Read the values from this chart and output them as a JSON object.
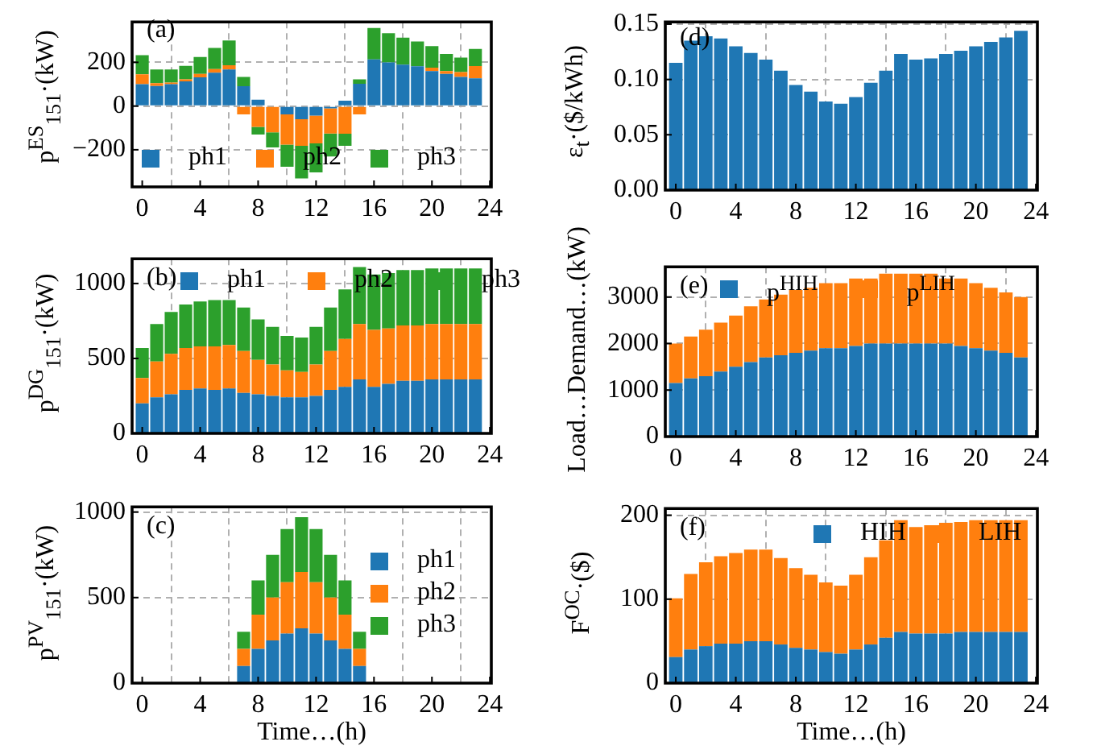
{
  "chart_data": [
    {
      "type": "bar",
      "stacked": true,
      "annotations": [
        "(a)"
      ],
      "ylabel": "p$^{ES}$$_{151}$·(kW)",
      "x": [
        0,
        1,
        2,
        3,
        4,
        5,
        6,
        7,
        8,
        9,
        10,
        11,
        12,
        13,
        14,
        15,
        16,
        17,
        18,
        19,
        20,
        21,
        22,
        23
      ],
      "xlim": [
        -0.7,
        24.1
      ],
      "xticks": [
        0,
        4,
        8,
        12,
        16,
        20,
        24
      ],
      "ylim": [
        -370,
        385
      ],
      "yticks": [
        {
          "value": -200,
          "label": "−200"
        },
        0,
        200
      ],
      "grid": true,
      "legend": "bottom",
      "series": [
        {
          "name": "ph1",
          "color": "#1f77b4",
          "values": [
            100,
            92,
            100,
            113,
            131,
            153,
            167,
            91,
            29,
            0,
            -38,
            -60,
            -44,
            -11,
            24,
            102,
            213,
            200,
            189,
            182,
            160,
            147,
            133,
            127
          ]
        },
        {
          "name": "ph2",
          "color": "#ff7f0e",
          "values": [
            45,
            13,
            7,
            9,
            16,
            16,
            20,
            -38,
            -95,
            -120,
            -138,
            -122,
            -127,
            -115,
            -127,
            -38,
            null,
            null,
            0,
            0,
            16,
            13,
            22,
            56
          ]
        },
        {
          "name": "ph3",
          "color": "#2ca02c",
          "values": [
            88,
            62,
            60,
            62,
            77,
            97,
            113,
            42,
            -35,
            -69,
            -102,
            -149,
            -133,
            -105,
            -55,
            20,
            144,
            133,
            124,
            113,
            98,
            78,
            67,
            78
          ]
        }
      ]
    },
    {
      "type": "bar",
      "stacked": true,
      "annotations": [
        "(b)"
      ],
      "ylabel": "p$^{DG}$$_{151}$·(kW)",
      "x": [
        0,
        1,
        2,
        3,
        4,
        5,
        6,
        7,
        8,
        9,
        10,
        11,
        12,
        13,
        14,
        15,
        16,
        17,
        18,
        19,
        20,
        21,
        22,
        23
      ],
      "xlim": [
        -0.7,
        24.1
      ],
      "xticks": [
        0,
        4,
        8,
        12,
        16,
        20,
        24
      ],
      "ylim": [
        0,
        1165
      ],
      "yticks": [
        0,
        500,
        1000
      ],
      "grid": true,
      "legend": "top",
      "series": [
        {
          "name": "ph1",
          "color": "#1f77b4",
          "values": [
            200,
            240,
            260,
            290,
            300,
            290,
            300,
            270,
            260,
            250,
            240,
            240,
            250,
            290,
            310,
            360,
            310,
            330,
            350,
            350,
            360,
            360,
            360,
            360
          ]
        },
        {
          "name": "ph2",
          "color": "#ff7f0e",
          "values": [
            170,
            240,
            270,
            280,
            280,
            290,
            290,
            280,
            230,
            210,
            180,
            170,
            210,
            260,
            320,
            370,
            380,
            370,
            370,
            370,
            370,
            370,
            370,
            370
          ]
        },
        {
          "name": "ph3",
          "color": "#2ca02c",
          "values": [
            200,
            250,
            280,
            290,
            300,
            310,
            300,
            290,
            270,
            250,
            230,
            230,
            250,
            290,
            330,
            380,
            370,
            370,
            370,
            370,
            370,
            370,
            370,
            370
          ]
        }
      ]
    },
    {
      "type": "bar",
      "stacked": true,
      "annotations": [
        "(c)"
      ],
      "ylabel": "p$^{PV}$$_{151}$·(kW)",
      "xlabel": "Time…(h)",
      "x": [
        0,
        1,
        2,
        3,
        4,
        5,
        6,
        7,
        8,
        9,
        10,
        11,
        12,
        13,
        14,
        15,
        16,
        17,
        18,
        19,
        20,
        21,
        22,
        23
      ],
      "xlim": [
        -0.7,
        24.1
      ],
      "xticks": [
        0,
        4,
        8,
        12,
        16,
        20,
        24
      ],
      "ylim": [
        0,
        1030
      ],
      "yticks": [
        0,
        500,
        1000
      ],
      "grid": true,
      "legend": "right",
      "series": [
        {
          "name": "ph1",
          "color": "#1f77b4",
          "values": [
            0,
            0,
            0,
            0,
            0,
            0,
            0,
            100,
            200,
            250,
            290,
            320,
            290,
            250,
            200,
            100,
            0,
            0,
            0,
            0,
            0,
            0,
            0,
            0
          ]
        },
        {
          "name": "ph2",
          "color": "#ff7f0e",
          "values": [
            0,
            0,
            0,
            0,
            0,
            0,
            0,
            100,
            200,
            250,
            300,
            330,
            300,
            250,
            200,
            100,
            0,
            0,
            0,
            0,
            0,
            0,
            0,
            0
          ]
        },
        {
          "name": "ph3",
          "color": "#2ca02c",
          "values": [
            0,
            0,
            0,
            0,
            0,
            0,
            0,
            100,
            200,
            250,
            310,
            320,
            310,
            250,
            200,
            100,
            0,
            0,
            0,
            0,
            0,
            0,
            0,
            0
          ]
        }
      ]
    },
    {
      "type": "bar",
      "annotations": [
        "(d)"
      ],
      "ylabel": "ε$_{t}$·($/kWh)",
      "x": [
        0,
        1,
        2,
        3,
        4,
        5,
        6,
        7,
        8,
        9,
        10,
        11,
        12,
        13,
        14,
        15,
        16,
        17,
        18,
        19,
        20,
        21,
        22,
        23
      ],
      "xlim": [
        -0.7,
        24.1
      ],
      "xticks": [
        0,
        4,
        8,
        12,
        16,
        20,
        24
      ],
      "ylim": [
        0,
        0.152
      ],
      "yticks": [
        {
          "value": 0,
          "label": "0.00"
        },
        {
          "value": 0.05,
          "label": "0.05"
        },
        {
          "value": 0.1,
          "label": "0.10"
        },
        {
          "value": 0.15,
          "label": "0.15"
        }
      ],
      "grid": true,
      "color": "#1f77b4",
      "values": [
        0.115,
        0.135,
        0.139,
        0.137,
        0.13,
        0.124,
        0.118,
        0.108,
        0.095,
        0.089,
        0.08,
        0.078,
        0.084,
        0.097,
        0.108,
        0.123,
        0.118,
        0.119,
        0.123,
        0.126,
        0.13,
        0.134,
        0.138,
        0.144
      ]
    },
    {
      "type": "bar",
      "stacked": true,
      "annotations": [
        "(e)"
      ],
      "ylabel": "Load…Demand…(kW)",
      "x": [
        0,
        1,
        2,
        3,
        4,
        5,
        6,
        7,
        8,
        9,
        10,
        11,
        12,
        13,
        14,
        15,
        16,
        17,
        18,
        19,
        20,
        21,
        22,
        23
      ],
      "xlim": [
        -0.7,
        24.1
      ],
      "xticks": [
        0,
        4,
        8,
        12,
        16,
        20,
        24
      ],
      "ylim": [
        0,
        3650
      ],
      "yticks": [
        0,
        1000,
        2000,
        3000
      ],
      "grid": true,
      "legend": "top left",
      "series": [
        {
          "name": "p$^{HIH}$",
          "color": "#1f77b4",
          "values": [
            1150,
            1250,
            1300,
            1400,
            1500,
            1600,
            1700,
            1750,
            1800,
            1850,
            1900,
            1900,
            1950,
            2000,
            2000,
            2000,
            2000,
            2000,
            2000,
            1950,
            1900,
            1850,
            1800,
            1700
          ]
        },
        {
          "name": "p$^{LIH}$",
          "color": "#ff7f0e",
          "values": [
            850,
            900,
            1000,
            1050,
            1100,
            1200,
            1250,
            1300,
            1350,
            1350,
            1400,
            1400,
            1450,
            1400,
            1500,
            1500,
            1500,
            1500,
            1400,
            1450,
            1400,
            1350,
            1300,
            1300
          ]
        }
      ]
    },
    {
      "type": "bar",
      "stacked": true,
      "annotations": [
        "(f)"
      ],
      "ylabel": "F$^{OC}$·($)",
      "xlabel": "Time…(h)",
      "x": [
        0,
        1,
        2,
        3,
        4,
        5,
        6,
        7,
        8,
        9,
        10,
        11,
        12,
        13,
        14,
        15,
        16,
        17,
        18,
        19,
        20,
        21,
        22,
        23
      ],
      "xlim": [
        -0.7,
        24.1
      ],
      "xticks": [
        0,
        4,
        8,
        12,
        16,
        20,
        24
      ],
      "ylim": [
        0,
        208
      ],
      "yticks": [
        0,
        100,
        200
      ],
      "grid": true,
      "legend": "top right",
      "series": [
        {
          "name": "HIH",
          "color": "#1f77b4",
          "values": [
            31,
            40,
            44,
            47,
            47,
            50,
            50,
            46,
            42,
            40,
            37,
            35,
            40,
            46,
            54,
            61,
            59,
            59,
            59,
            61,
            61,
            61,
            61,
            61
          ]
        },
        {
          "name": "LIH",
          "color": "#ff7f0e",
          "values": [
            70,
            90,
            100,
            104,
            108,
            109,
            109,
            103,
            95,
            89,
            83,
            81,
            89,
            104,
            116,
            133,
            127,
            129,
            132,
            131,
            133,
            133,
            133,
            133
          ]
        }
      ]
    }
  ]
}
